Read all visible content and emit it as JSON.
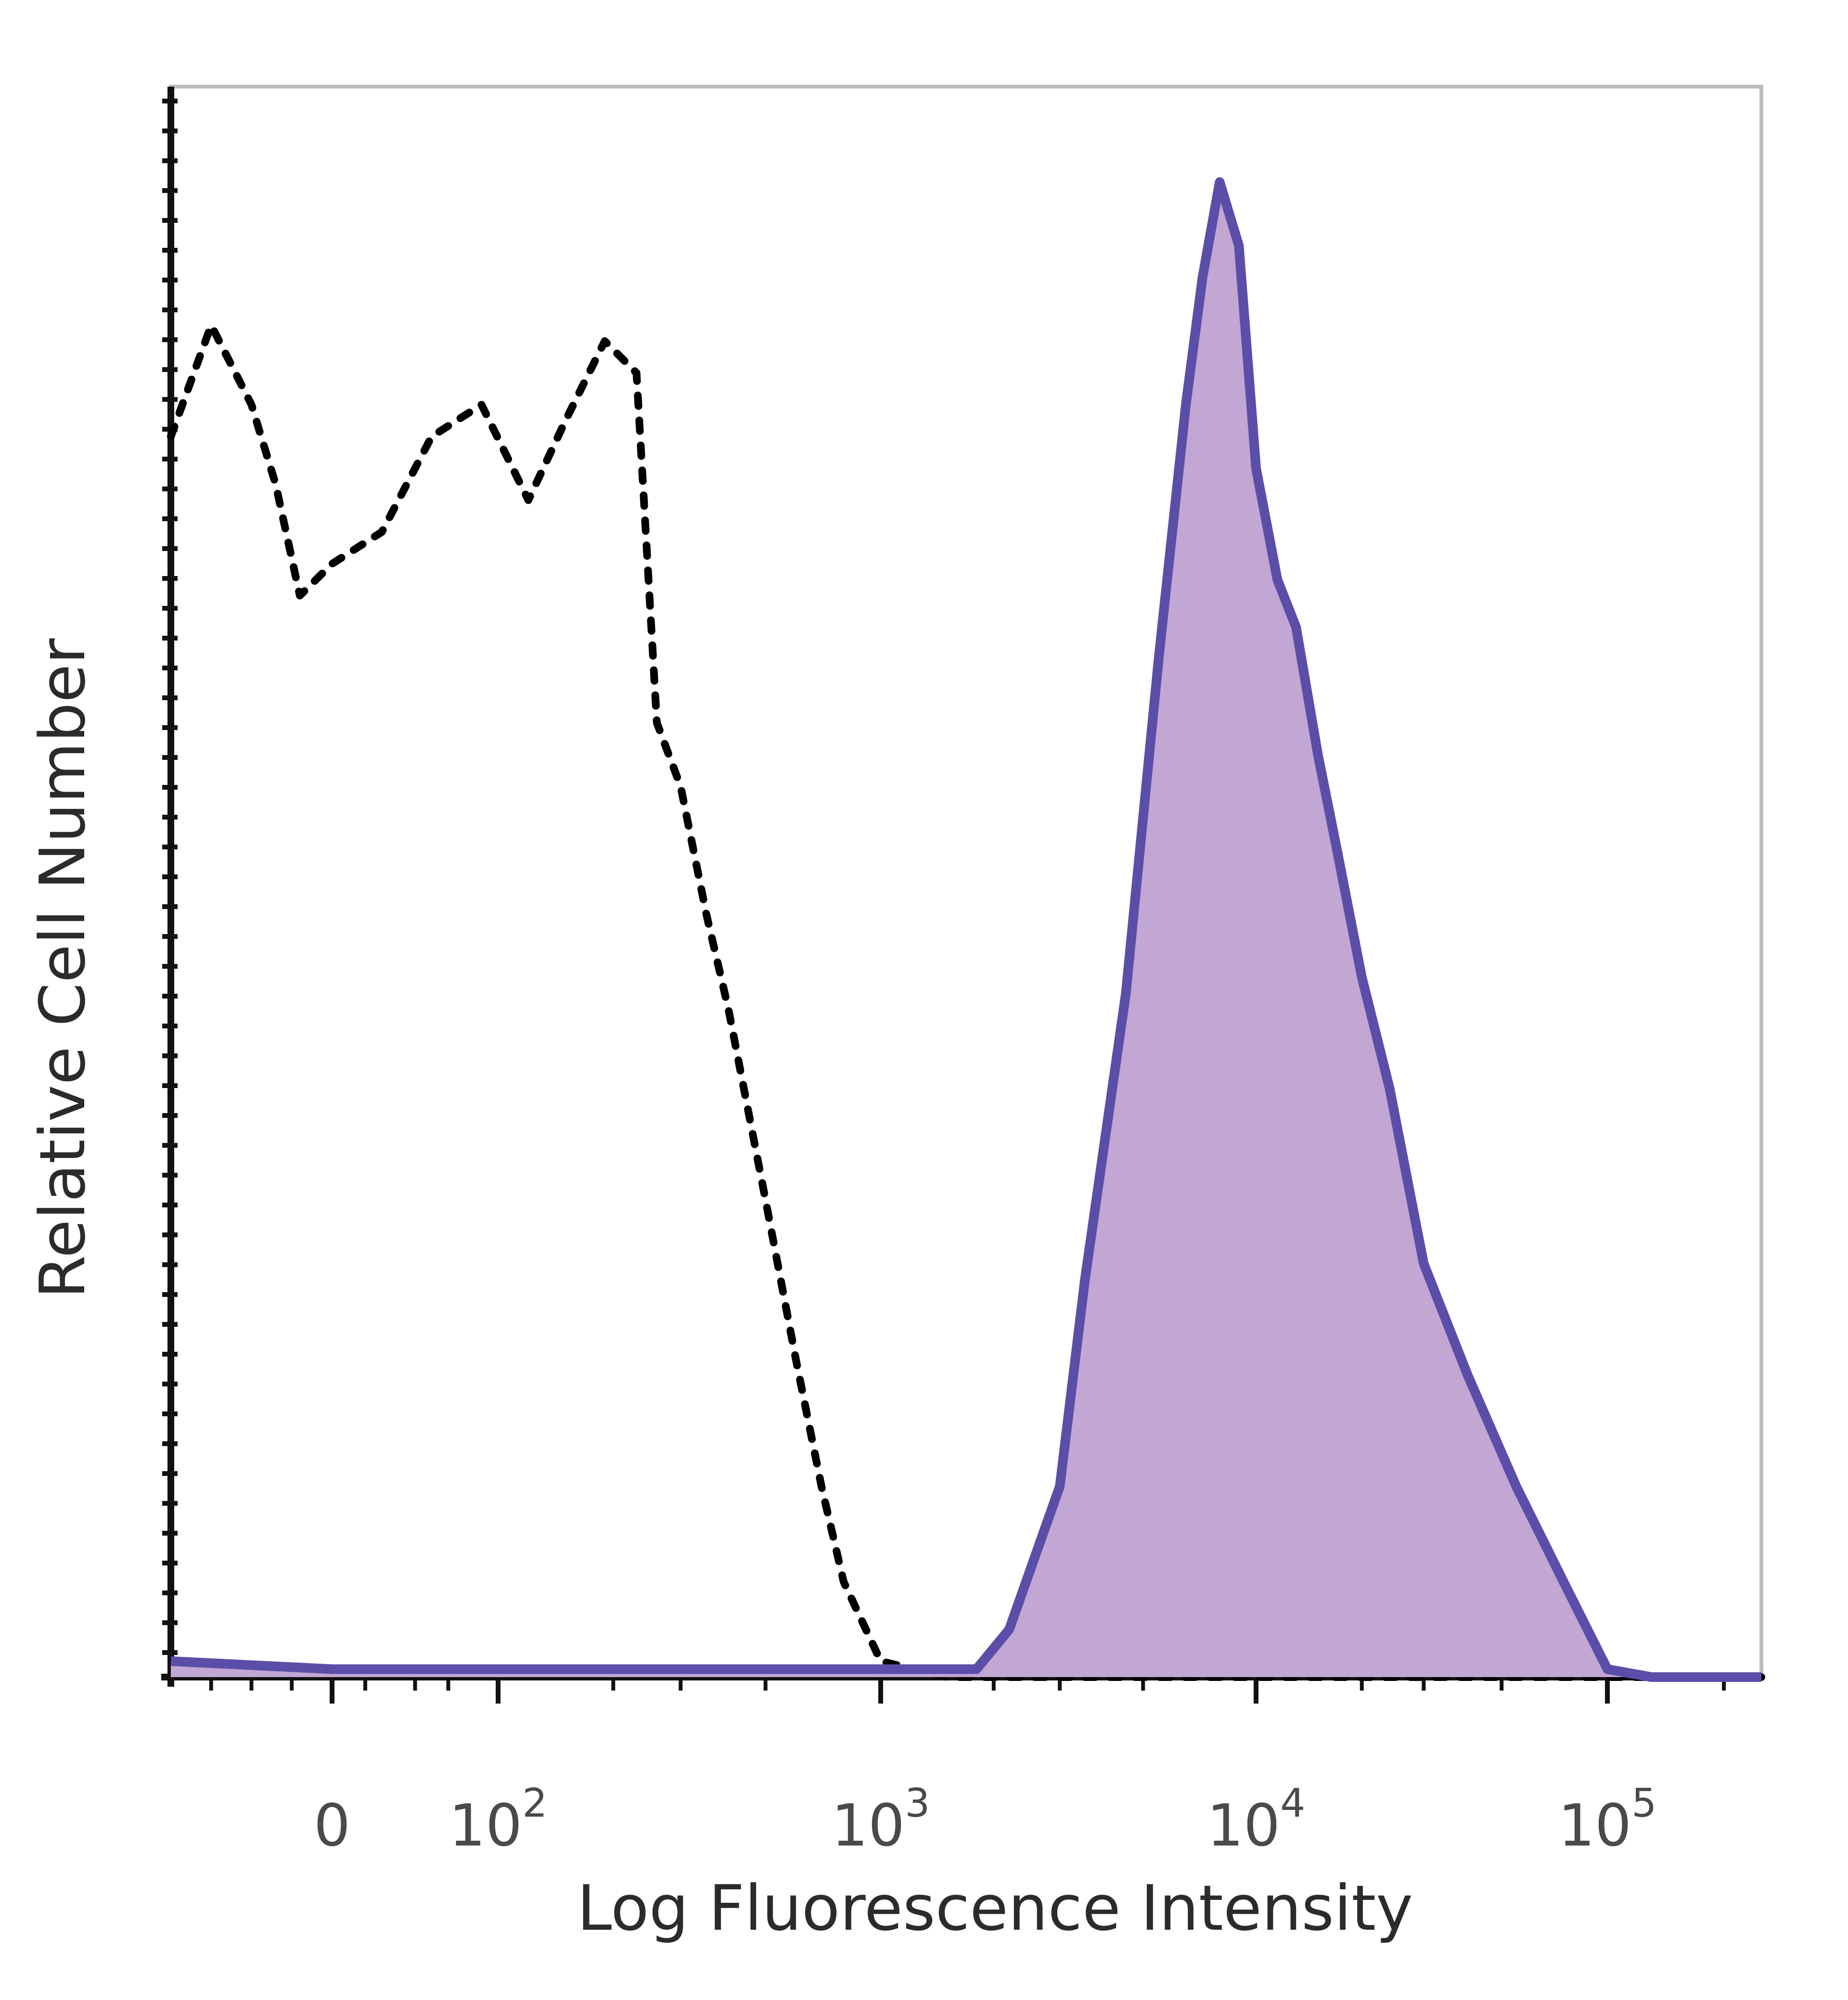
{
  "chart_data": {
    "type": "area",
    "title": "",
    "xlabel": "Log Fluorescence Intensity",
    "ylabel": "Relative Cell Number",
    "x_scale": "biexponential",
    "xlim": [
      -200,
      250000
    ],
    "ylim": [
      0,
      100
    ],
    "x_ticks": [
      {
        "value": 0,
        "label": "0",
        "power": ""
      },
      {
        "value": 100,
        "label": "10",
        "power": "2"
      },
      {
        "value": 1000,
        "label": "10",
        "power": "3"
      },
      {
        "value": 10000,
        "label": "10",
        "power": "4"
      },
      {
        "value": 100000,
        "label": "10",
        "power": "5"
      }
    ],
    "grid": false,
    "legend": "none",
    "series": [
      {
        "style": "dotted-line",
        "color": "#000000",
        "x": [
          -200,
          -150,
          -100,
          -70,
          -40,
          0,
          30,
          60,
          90,
          120,
          150,
          190,
          230,
          260,
          300,
          350,
          400,
          500,
          600,
          700,
          800,
          1000,
          1500,
          3000,
          10000,
          50000,
          250000
        ],
        "y": [
          78,
          85,
          80,
          75,
          68,
          70,
          72,
          78,
          80,
          74,
          79,
          84,
          82,
          60,
          56,
          48,
          42,
          30,
          20,
          12,
          6,
          1,
          0,
          0,
          0,
          0,
          0
        ]
      },
      {
        "style": "filled-area",
        "color": "#5b4ea8",
        "fill": "#c2a6d3",
        "x": [
          -200,
          0,
          500,
          1000,
          1800,
          2200,
          3000,
          3500,
          4500,
          5500,
          6500,
          7200,
          8000,
          9000,
          10000,
          11500,
          13000,
          15000,
          17000,
          20000,
          24000,
          30000,
          40000,
          55000,
          75000,
          100000,
          130000,
          250000
        ],
        "y": [
          1,
          0.5,
          0.5,
          0.5,
          0.5,
          3,
          12,
          25,
          43,
          64,
          80,
          88,
          94,
          90,
          76,
          69,
          66,
          58,
          52,
          44,
          37,
          26,
          19,
          12,
          6,
          0.5,
          0,
          0
        ]
      }
    ]
  }
}
